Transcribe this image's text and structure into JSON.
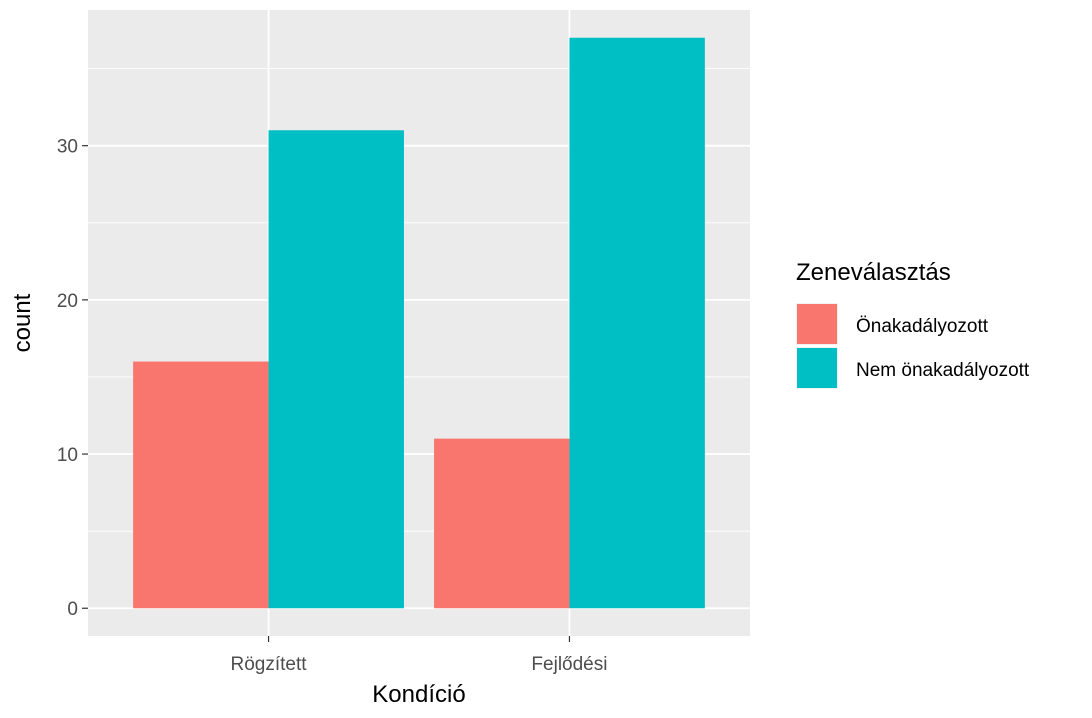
{
  "chart_data": {
    "type": "bar",
    "categories": [
      "Rögzített",
      "Fejlődési"
    ],
    "series": [
      {
        "name": "Önakadályozott",
        "values": [
          16,
          11
        ],
        "color": "#F8766D"
      },
      {
        "name": "Nem önakadályozott",
        "values": [
          31,
          37
        ],
        "color": "#00BFC4"
      }
    ],
    "xlabel": "Kondíció",
    "ylabel": "count",
    "ylim": [
      -1.8,
      38.8
    ],
    "yticks": [
      0,
      10,
      20,
      30
    ],
    "grid": true,
    "legend": {
      "title": "Zeneválasztás",
      "placement": "right"
    },
    "panel_background": "#EBEBEB"
  }
}
